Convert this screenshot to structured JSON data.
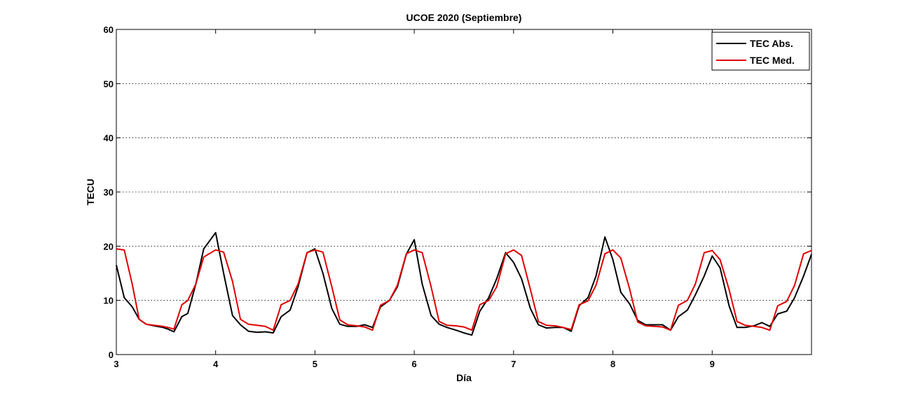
{
  "chart_data": {
    "type": "line",
    "title": "UCOE 2020 (Septiembre)",
    "xlabel": "Día",
    "ylabel": "TECU",
    "xlim": [
      3,
      10
    ],
    "ylim": [
      0,
      60
    ],
    "xticks": [
      "3",
      "4",
      "5",
      "6",
      "7",
      "8",
      "9"
    ],
    "yticks": [
      "0",
      "10",
      "20",
      "30",
      "40",
      "50",
      "60"
    ],
    "grid": "horizontal dotted",
    "legend_position": "top-right",
    "series": [
      {
        "name": "TEC Abs.",
        "color": "#000000",
        "x": [
          3.0,
          3.08,
          3.16,
          3.23,
          3.3,
          3.38,
          3.47,
          3.52,
          3.58,
          3.66,
          3.72,
          3.8,
          3.88,
          4.0,
          4.08,
          4.17,
          4.25,
          4.33,
          4.42,
          4.5,
          4.58,
          4.66,
          4.75,
          4.83,
          4.92,
          5.0,
          5.08,
          5.17,
          5.25,
          5.33,
          5.42,
          5.5,
          5.58,
          5.66,
          5.75,
          5.83,
          5.92,
          6.0,
          6.08,
          6.17,
          6.25,
          6.33,
          6.42,
          6.5,
          6.58,
          6.66,
          6.75,
          6.83,
          6.92,
          7.0,
          7.08,
          7.17,
          7.25,
          7.33,
          7.42,
          7.5,
          7.58,
          7.66,
          7.75,
          7.83,
          7.92,
          8.0,
          8.08,
          8.17,
          8.25,
          8.33,
          8.42,
          8.5,
          8.58,
          8.66,
          8.75,
          8.83,
          8.92,
          9.0,
          9.08,
          9.17,
          9.25,
          9.33,
          9.42,
          9.5,
          9.58,
          9.66,
          9.75,
          9.83,
          9.92,
          10.0
        ],
        "y": [
          16.5,
          10.5,
          8.8,
          6.5,
          5.6,
          5.3,
          5.0,
          4.7,
          4.2,
          7.0,
          7.6,
          13.0,
          19.5,
          22.5,
          15.0,
          7.2,
          5.5,
          4.3,
          4.1,
          4.2,
          4.0,
          7.0,
          8.2,
          12.5,
          18.8,
          19.5,
          15.0,
          8.5,
          5.6,
          5.2,
          5.2,
          5.5,
          5.0,
          8.8,
          10.0,
          12.5,
          18.5,
          21.2,
          13.0,
          7.2,
          5.6,
          5.0,
          4.5,
          4.0,
          3.6,
          8.0,
          10.5,
          14.0,
          18.8,
          17.0,
          14.0,
          8.5,
          5.5,
          4.9,
          5.0,
          5.0,
          4.3,
          9.0,
          10.5,
          14.5,
          21.7,
          17.5,
          11.5,
          9.3,
          6.3,
          5.5,
          5.5,
          5.5,
          4.5,
          7.0,
          8.2,
          11.0,
          14.5,
          18.2,
          16.0,
          9.0,
          5.0,
          5.0,
          5.3,
          5.9,
          5.2,
          7.5,
          8.0,
          10.5,
          14.5,
          18.5
        ]
      },
      {
        "name": "TEC Med.",
        "color": "#e00000",
        "x": [
          3.0,
          3.08,
          3.16,
          3.23,
          3.3,
          3.38,
          3.47,
          3.52,
          3.58,
          3.66,
          3.72,
          3.8,
          3.88,
          4.0,
          4.08,
          4.17,
          4.25,
          4.33,
          4.42,
          4.5,
          4.58,
          4.66,
          4.75,
          4.83,
          4.92,
          5.0,
          5.08,
          5.17,
          5.25,
          5.33,
          5.42,
          5.5,
          5.58,
          5.66,
          5.75,
          5.83,
          5.92,
          6.0,
          6.08,
          6.17,
          6.25,
          6.33,
          6.42,
          6.5,
          6.58,
          6.66,
          6.75,
          6.83,
          6.92,
          7.0,
          7.08,
          7.17,
          7.25,
          7.33,
          7.42,
          7.5,
          7.58,
          7.66,
          7.75,
          7.83,
          7.92,
          8.0,
          8.08,
          8.17,
          8.25,
          8.33,
          8.42,
          8.5,
          8.58,
          8.66,
          8.75,
          8.83,
          8.92,
          9.0,
          9.08,
          9.17,
          9.25,
          9.33,
          9.42,
          9.5,
          9.58,
          9.66,
          9.75,
          9.83,
          9.92,
          10.0
        ],
        "y": [
          19.5,
          19.3,
          13.0,
          6.5,
          5.6,
          5.4,
          5.2,
          5.0,
          4.7,
          9.2,
          10.0,
          13.0,
          18.0,
          19.3,
          18.9,
          13.5,
          6.5,
          5.6,
          5.4,
          5.2,
          4.5,
          9.2,
          10.0,
          13.0,
          18.8,
          19.3,
          18.9,
          12.5,
          6.4,
          5.5,
          5.3,
          5.1,
          4.5,
          9.1,
          10.0,
          12.8,
          18.6,
          19.3,
          18.8,
          12.5,
          6.1,
          5.4,
          5.3,
          5.1,
          4.5,
          9.2,
          10.0,
          12.5,
          18.6,
          19.3,
          18.3,
          12.0,
          6.1,
          5.4,
          5.3,
          5.0,
          4.6,
          9.2,
          9.9,
          12.8,
          18.6,
          19.3,
          17.8,
          12.0,
          6.0,
          5.3,
          5.2,
          5.1,
          4.5,
          9.1,
          10.0,
          13.0,
          18.8,
          19.2,
          17.5,
          12.0,
          6.1,
          5.4,
          5.2,
          5.0,
          4.5,
          9.0,
          9.8,
          12.8,
          18.6,
          19.2
        ]
      }
    ]
  }
}
